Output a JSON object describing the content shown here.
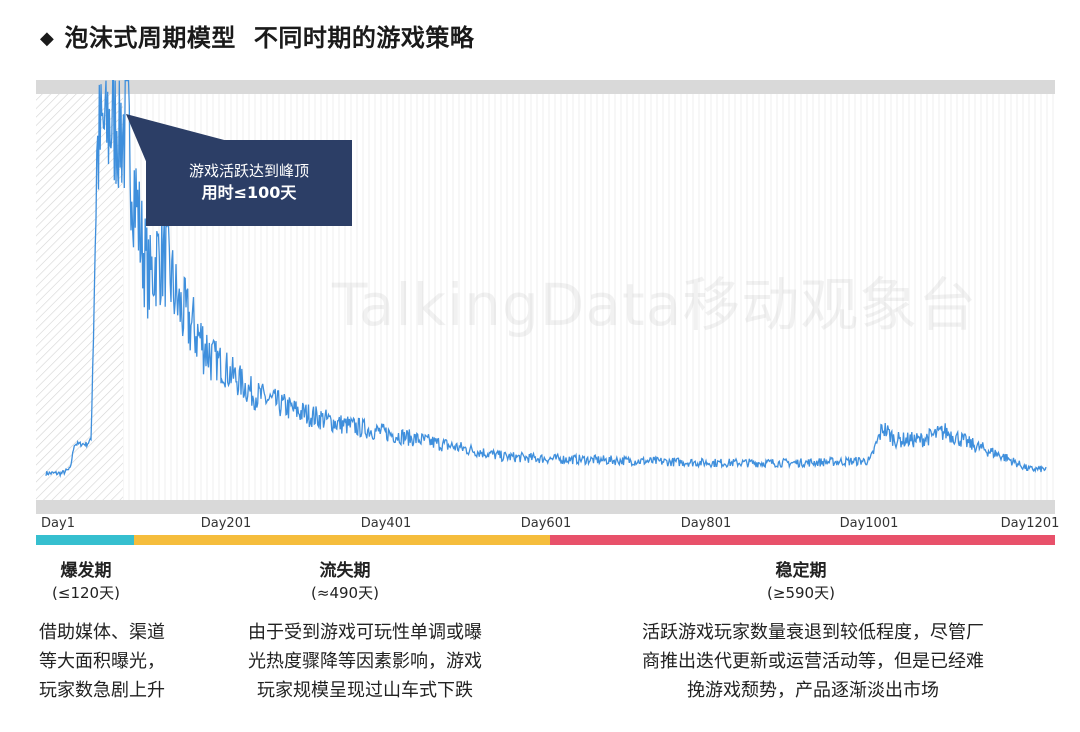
{
  "header": {
    "title": "泡沫式周期模型",
    "subtitle": "不同时期的游戏策略"
  },
  "watermark": "TalkingData移动观象台",
  "callout": {
    "line1": "游戏活跃达到峰顶",
    "line2": "用时≤100天"
  },
  "colors": {
    "line": "#3f8fdc",
    "phase_burst": "#36bfcf",
    "phase_churn": "#f5bd3c",
    "phase_stable": "#e8516a",
    "callout_bg": "#2c3e66"
  },
  "chart_data": {
    "type": "line",
    "x_tick_labels": [
      "Day1",
      "Day201",
      "Day401",
      "Day601",
      "Day801",
      "Day1001",
      "Day1201"
    ],
    "xlim": [
      1,
      1201
    ],
    "y_axis_labels_shown": false,
    "shaded_region_days": [
      1,
      100
    ],
    "series": [
      {
        "shape_keypoints_relative": [
          [
            1,
            0.04
          ],
          [
            20,
            0.04
          ],
          [
            30,
            0.05
          ],
          [
            35,
            0.11
          ],
          [
            50,
            0.11
          ],
          [
            55,
            0.12
          ],
          [
            58,
            0.4
          ],
          [
            62,
            0.8
          ],
          [
            70,
            0.86
          ],
          [
            85,
            0.9
          ],
          [
            100,
            0.84
          ],
          [
            115,
            0.6
          ],
          [
            125,
            0.5
          ],
          [
            135,
            0.56
          ],
          [
            145,
            0.55
          ],
          [
            160,
            0.44
          ],
          [
            200,
            0.32
          ],
          [
            250,
            0.23
          ],
          [
            300,
            0.19
          ],
          [
            350,
            0.16
          ],
          [
            400,
            0.14
          ],
          [
            450,
            0.12
          ],
          [
            500,
            0.1
          ],
          [
            550,
            0.08
          ],
          [
            600,
            0.075
          ],
          [
            700,
            0.07
          ],
          [
            800,
            0.065
          ],
          [
            900,
            0.065
          ],
          [
            990,
            0.07
          ],
          [
            1005,
            0.15
          ],
          [
            1020,
            0.12
          ],
          [
            1050,
            0.12
          ],
          [
            1080,
            0.14
          ],
          [
            1110,
            0.11
          ],
          [
            1150,
            0.08
          ],
          [
            1180,
            0.05
          ],
          [
            1201,
            0.05
          ]
        ]
      }
    ]
  },
  "phases": [
    {
      "name": "爆发期",
      "duration": "(≤120天)",
      "desc": [
        "借助媒体、渠道",
        "等大面积曝光，",
        "玩家数急剧上升"
      ]
    },
    {
      "name": "流失期",
      "duration": "(≈490天)",
      "desc": [
        "由于受到游戏可玩性单调或曝",
        "光热度骤降等因素影响，游戏",
        "玩家规模呈现过山车式下跌"
      ]
    },
    {
      "name": "稳定期",
      "duration": "(≥590天)",
      "desc": [
        "活跃游戏玩家数量衰退到较低程度，尽管厂",
        "商推出迭代更新或运营活动等，但是已经难",
        "挽游戏颓势，产品逐渐淡出市场"
      ]
    }
  ]
}
